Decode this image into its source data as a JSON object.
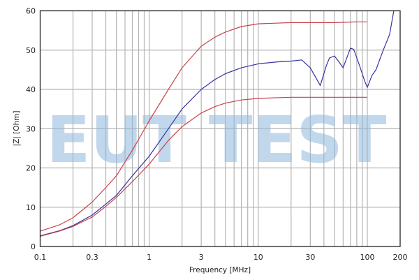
{
  "chart_data": {
    "type": "line",
    "xlabel": "Frequency [MHz]",
    "ylabel": "|Z| [Ohm]",
    "xscale": "log",
    "xlim": [
      0.1,
      200
    ],
    "ylim": [
      0,
      60
    ],
    "grid": true,
    "x_ticks": [
      0.1,
      0.3,
      1,
      3,
      10,
      30,
      100,
      200
    ],
    "x_tick_labels": [
      "0.1",
      "0.3",
      "1",
      "3",
      "10",
      "30",
      "100",
      "200"
    ],
    "y_ticks": [
      0,
      10,
      20,
      30,
      40,
      50,
      60
    ],
    "y_tick_labels": [
      "0",
      "10",
      "20",
      "30",
      "40",
      "50",
      "60"
    ],
    "watermark": "EUT TEST",
    "series": [
      {
        "color": "#c8424c",
        "x": [
          0.1,
          0.15,
          0.2,
          0.3,
          0.4,
          0.5,
          0.7,
          1,
          1.5,
          2,
          3,
          4,
          5,
          7,
          10,
          20,
          50,
          80,
          100
        ],
        "y": [
          3.9,
          5.5,
          7.3,
          11.3,
          15,
          18,
          24.5,
          32,
          40,
          45.5,
          51,
          53.3,
          54.6,
          56,
          56.7,
          57,
          57,
          57.2,
          57.2
        ]
      },
      {
        "color": "#34349e",
        "x": [
          0.1,
          0.15,
          0.2,
          0.3,
          0.4,
          0.5,
          0.7,
          1,
          1.5,
          2,
          3,
          4,
          5,
          7,
          10,
          15,
          20,
          25,
          30,
          37,
          42,
          45,
          50,
          55,
          60,
          70,
          75,
          85,
          95,
          100,
          110,
          120,
          140,
          160,
          175
        ],
        "y": [
          2.7,
          4,
          5.3,
          8,
          10.8,
          13,
          18,
          23,
          30,
          35,
          40,
          42.5,
          44,
          45.5,
          46.5,
          47,
          47.2,
          47.5,
          45.5,
          41,
          46,
          48,
          48.5,
          47,
          45.5,
          50.5,
          50.2,
          46,
          42,
          40.5,
          43.5,
          45,
          50,
          54,
          60
        ]
      },
      {
        "color": "#c8424c",
        "x": [
          0.1,
          0.15,
          0.2,
          0.3,
          0.4,
          0.5,
          0.7,
          1,
          1.5,
          2,
          3,
          4,
          5,
          7,
          10,
          20,
          50,
          100
        ],
        "y": [
          2.6,
          3.9,
          5.1,
          7.5,
          10.2,
          12.5,
          16.5,
          21,
          27,
          30.5,
          34,
          35.6,
          36.5,
          37.3,
          37.7,
          38,
          38,
          38
        ]
      }
    ]
  }
}
